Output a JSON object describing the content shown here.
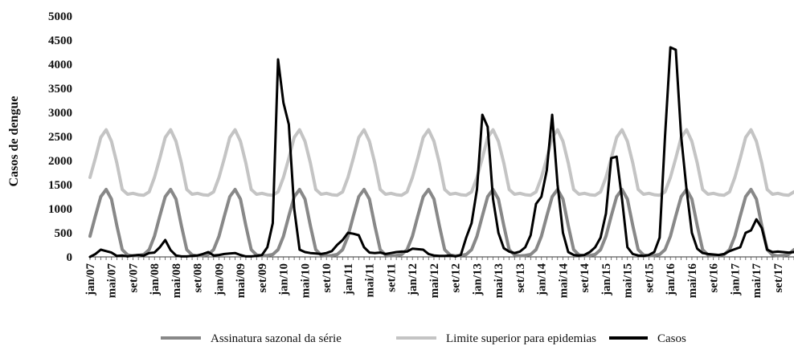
{
  "chart_data": {
    "type": "line",
    "ylabel": "Casos de dengue",
    "ylim": [
      0,
      5000
    ],
    "yticks": [
      0,
      500,
      1000,
      1500,
      2000,
      2500,
      3000,
      3500,
      4000,
      4500,
      5000
    ],
    "grid": false,
    "legend_position": "bottom",
    "x_start": "jan/07",
    "x_end": "dez/17",
    "x_tick_labels": [
      "jan/07",
      "mai/07",
      "set/07",
      "jan/08",
      "mai/08",
      "set/08",
      "jan/09",
      "mai/09",
      "set/09",
      "jan/10",
      "mai/10",
      "set/10",
      "jan/11",
      "mai/11",
      "set/11",
      "jan/12",
      "mai/12",
      "set/12",
      "jan/13",
      "mai/13",
      "set/13",
      "jan/14",
      "mai/14",
      "set/14",
      "jan/15",
      "mai/15",
      "set/15",
      "jan/16",
      "mai/16",
      "set/16",
      "jan/17",
      "mai/17",
      "set/17"
    ],
    "series": [
      {
        "name": "Assinatura sazonal da série",
        "color": "#888888",
        "annual_pattern": [
          430,
          850,
          1250,
          1400,
          1200,
          650,
          150,
          40,
          20,
          30,
          50,
          150
        ]
      },
      {
        "name": "Limite superior para epidemias",
        "color": "#c4c4c4",
        "annual_pattern": [
          1650,
          2050,
          2480,
          2640,
          2400,
          1950,
          1400,
          1300,
          1320,
          1290,
          1280,
          1350
        ]
      },
      {
        "name": "Casos",
        "color": "#000000",
        "values": [
          0,
          60,
          150,
          120,
          90,
          20,
          30,
          10,
          30,
          40,
          30,
          80,
          90,
          200,
          350,
          140,
          30,
          10,
          10,
          20,
          30,
          60,
          100,
          30,
          40,
          60,
          70,
          80,
          40,
          10,
          10,
          20,
          40,
          200,
          700,
          4100,
          3200,
          2750,
          1000,
          150,
          100,
          80,
          70,
          60,
          80,
          120,
          250,
          350,
          500,
          480,
          450,
          200,
          90,
          80,
          90,
          60,
          80,
          100,
          110,
          110,
          170,
          160,
          150,
          60,
          30,
          20,
          20,
          30,
          10,
          40,
          400,
          700,
          1400,
          2950,
          2700,
          1200,
          500,
          180,
          110,
          80,
          110,
          200,
          450,
          1100,
          1250,
          1800,
          2950,
          1500,
          500,
          100,
          40,
          30,
          40,
          100,
          200,
          400,
          900,
          2050,
          2080,
          1200,
          200,
          60,
          30,
          20,
          40,
          100,
          400,
          2500,
          4350,
          4300,
          2500,
          1400,
          500,
          170,
          80,
          60,
          50,
          40,
          60,
          120,
          160,
          200,
          500,
          550,
          780,
          600,
          150,
          100,
          110,
          100,
          90,
          100
        ]
      }
    ]
  }
}
